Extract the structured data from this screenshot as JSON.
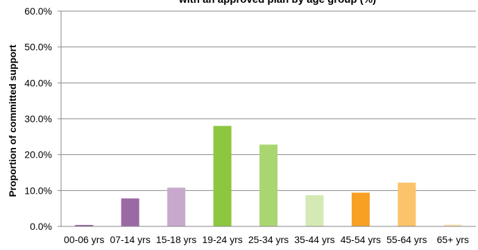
{
  "chart_data": {
    "type": "bar",
    "title": "with an approved plan by age group (%)",
    "ylabel": "Proportion of committed support",
    "xlabel": "",
    "ylim": [
      0,
      60
    ],
    "yticks": [
      "0.0%",
      "10.0%",
      "20.0%",
      "30.0%",
      "40.0%",
      "50.0%",
      "60.0%"
    ],
    "ytick_values": [
      0,
      10,
      20,
      30,
      40,
      50,
      60
    ],
    "grid": true,
    "categories": [
      "00-06 yrs",
      "07-14 yrs",
      "15-18 yrs",
      "19-24 yrs",
      "25-34 yrs",
      "35-44 yrs",
      "45-54 yrs",
      "55-64 yrs",
      "65+ yrs"
    ],
    "values": [
      0.4,
      7.8,
      10.8,
      28.0,
      22.8,
      8.7,
      9.4,
      12.2,
      0.5
    ],
    "colors": [
      "#8e5f9e",
      "#9b6aa5",
      "#c7a9cc",
      "#8dc63f",
      "#aad672",
      "#d4e9b4",
      "#f7a024",
      "#fbc46b",
      "#fce0b4"
    ]
  }
}
